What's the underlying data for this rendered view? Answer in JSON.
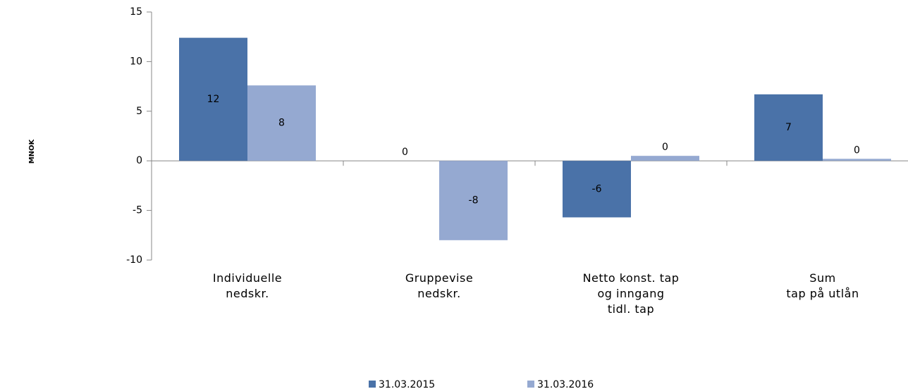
{
  "chart_data": {
    "type": "bar",
    "y_label": "MNOK",
    "categories": [
      "Individuelle\nnedskr.",
      "Gruppevise\nnedskr.",
      "Netto konst. tap\nog inngang\ntidl. tap",
      "Sum\ntap på utlån"
    ],
    "series": [
      {
        "name": "31.03.2015",
        "color": "#4a72a8",
        "values": [
          12.4,
          0,
          -5.7,
          6.7
        ],
        "value_labels": [
          "12",
          "0",
          "-6",
          "7"
        ]
      },
      {
        "name": "31.03.2016",
        "color": "#95a9d1",
        "values": [
          7.6,
          -8,
          0.5,
          0.2
        ],
        "value_labels": [
          "8",
          "-8",
          "0",
          "0"
        ]
      }
    ],
    "ylim": [
      -10,
      15
    ],
    "yticks": [
      -10,
      -5,
      0,
      5,
      10,
      15
    ]
  }
}
